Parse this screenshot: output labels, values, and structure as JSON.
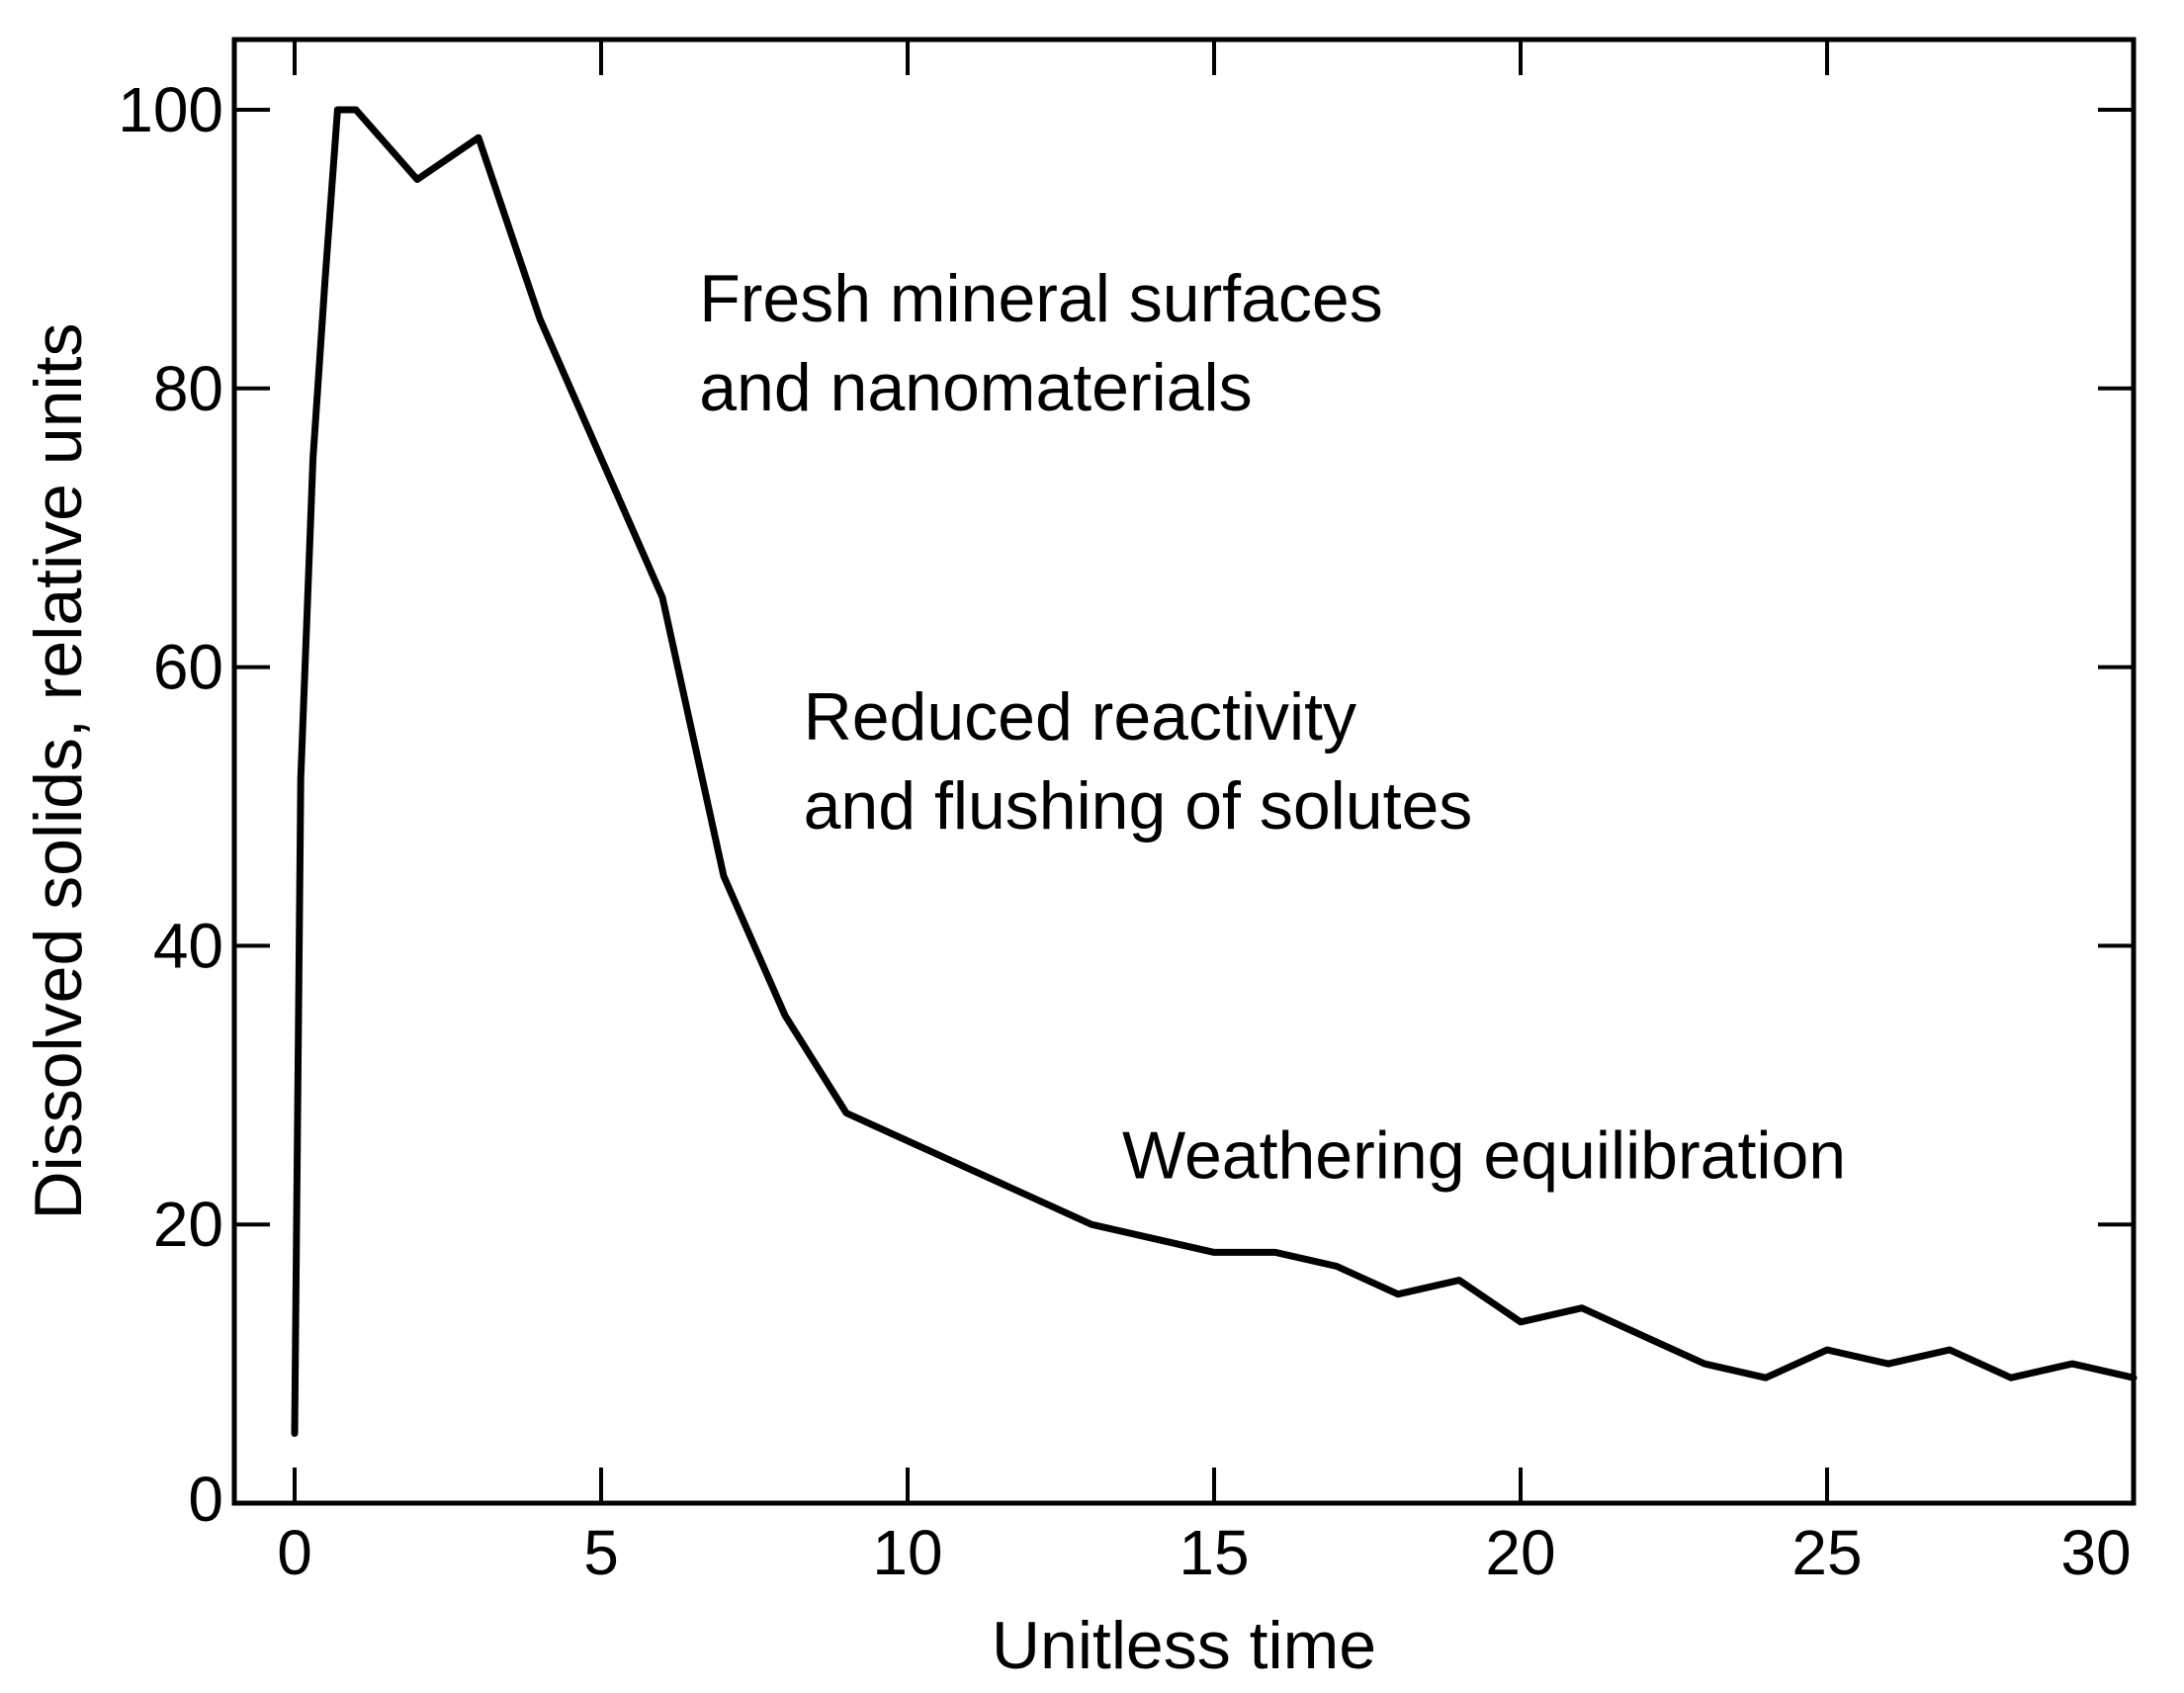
{
  "chart_data": {
    "type": "line",
    "title": "",
    "xlabel": "Unitless time",
    "ylabel": "Dissolved solids, relative units",
    "xlim": [
      -1,
      30
    ],
    "ylim": [
      0,
      105
    ],
    "xticks": [
      0,
      5,
      10,
      15,
      20,
      25,
      30
    ],
    "yticks": [
      0,
      20,
      40,
      60,
      80,
      100
    ],
    "grid": false,
    "legend": "none",
    "line_color": "#000000",
    "series": [
      {
        "x": [
          0,
          0.1,
          0.3,
          0.5,
          0.7,
          1,
          2,
          3,
          4,
          5,
          6,
          7,
          8,
          9,
          10,
          11,
          12,
          13,
          14,
          15,
          16,
          17,
          18,
          19,
          20,
          21,
          22,
          23,
          24,
          25,
          26,
          27,
          28,
          29,
          30
        ],
        "values": [
          5,
          52,
          75,
          88,
          100,
          100,
          95,
          98,
          85,
          75,
          65,
          45,
          35,
          28,
          26,
          24,
          22,
          20,
          19,
          18,
          18,
          17,
          15,
          16,
          13,
          14,
          12,
          10,
          9,
          11,
          10,
          11,
          9,
          10,
          9
        ]
      }
    ],
    "annotations": [
      {
        "x": 6.6,
        "y": 84.8,
        "lines": [
          "Fresh mineral surfaces",
          "and nanomaterials"
        ]
      },
      {
        "x": 8.3,
        "y": 54.8,
        "lines": [
          "Reduced reactivity",
          "and flushing of solutes"
        ]
      },
      {
        "x": 13.5,
        "y": 23.3,
        "lines": [
          "Weathering equilibration"
        ]
      }
    ]
  }
}
